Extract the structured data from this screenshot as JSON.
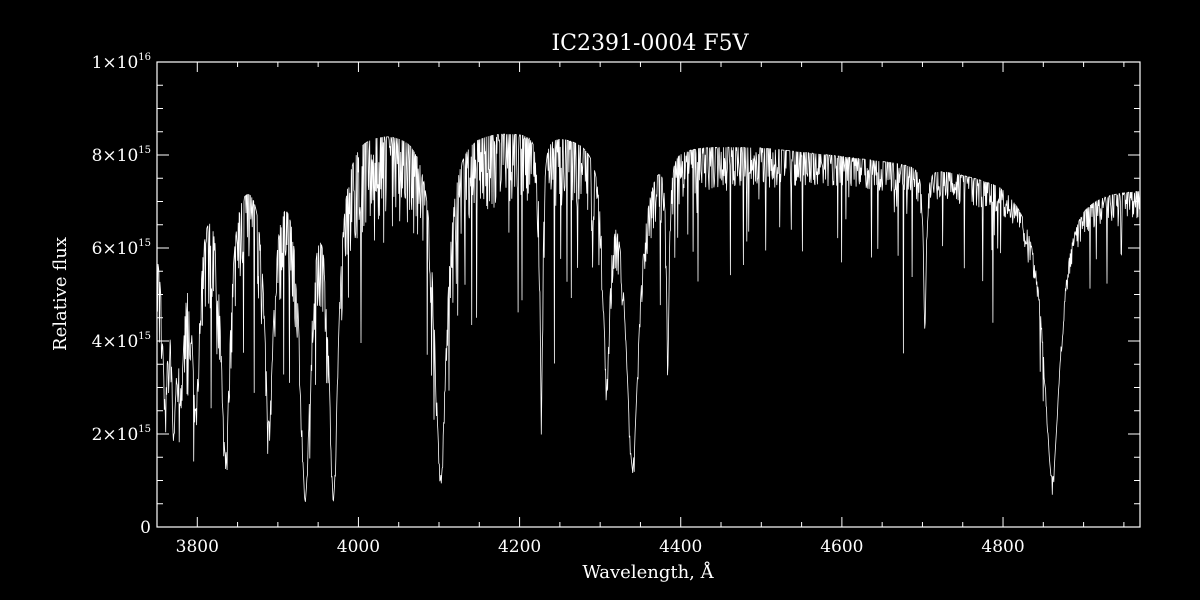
{
  "chart_data": {
    "type": "line",
    "title": "IC2391-0004   F5V",
    "xlabel": "Wavelength, Å",
    "ylabel": "Relative flux",
    "xlim": [
      3750,
      4970
    ],
    "ylim": [
      0,
      1e+16
    ],
    "x_ticks": [
      3800,
      4000,
      4200,
      4400,
      4600,
      4800
    ],
    "x_tick_labels": [
      "3800",
      "4000",
      "4200",
      "4400",
      "4600",
      "4800"
    ],
    "y_ticks": [
      {
        "value": 0,
        "mantissa": "0",
        "exponent": ""
      },
      {
        "value": 2000000000000000.0,
        "mantissa": "2×10",
        "exponent": "15"
      },
      {
        "value": 4000000000000000.0,
        "mantissa": "4×10",
        "exponent": "15"
      },
      {
        "value": 6000000000000000.0,
        "mantissa": "6×10",
        "exponent": "15"
      },
      {
        "value": 8000000000000000.0,
        "mantissa": "8×10",
        "exponent": "15"
      },
      {
        "value": 1e+16,
        "mantissa": "1×10",
        "exponent": "16"
      }
    ],
    "grid": false,
    "colors": {
      "background": "#000000",
      "foreground": "#ffffff"
    },
    "series": [
      {
        "continuum": [
          [
            3750,
            6600000000000000.0
          ],
          [
            3800,
            7900000000000000.0
          ],
          [
            3900,
            8200000000000000.0
          ],
          [
            4000,
            8700000000000000.0
          ],
          [
            4100,
            8700000000000000.0
          ],
          [
            4200,
            8600000000000000.0
          ],
          [
            4300,
            8500000000000000.0
          ],
          [
            4400,
            8300000000000000.0
          ],
          [
            4500,
            8200000000000000.0
          ],
          [
            4600,
            8000000000000000.0
          ],
          [
            4700,
            7800000000000000.0
          ],
          [
            4800,
            7500000000000000.0
          ],
          [
            4850,
            7000000000000000.0
          ],
          [
            4880,
            7300000000000000.0
          ],
          [
            4970,
            7300000000000000.0
          ]
        ],
        "absorption_features": [
          {
            "center": 3760,
            "depth": 0.55,
            "width": 4
          },
          {
            "center": 3771,
            "depth": 0.6,
            "width": 4
          },
          {
            "center": 3780,
            "depth": 0.5,
            "width": 5
          },
          {
            "center": 3798,
            "depth": 0.65,
            "width": 6
          },
          {
            "center": 3835,
            "depth": 0.8,
            "width": 7
          },
          {
            "center": 3889,
            "depth": 0.7,
            "width": 7
          },
          {
            "center": 3934,
            "depth": 0.92,
            "width": 8
          },
          {
            "center": 3969,
            "depth": 0.92,
            "width": 7
          },
          {
            "center": 4102,
            "depth": 0.87,
            "width": 9
          },
          {
            "center": 4227,
            "depth": 0.72,
            "width": 2
          },
          {
            "center": 4308,
            "depth": 0.6,
            "width": 5
          },
          {
            "center": 4340,
            "depth": 0.84,
            "width": 10
          },
          {
            "center": 4384,
            "depth": 0.55,
            "width": 2
          },
          {
            "center": 4703,
            "depth": 0.45,
            "width": 2
          },
          {
            "center": 4861,
            "depth": 0.85,
            "width": 12
          }
        ]
      }
    ]
  }
}
